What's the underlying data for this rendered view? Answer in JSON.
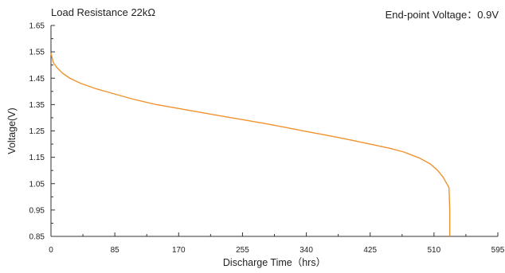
{
  "header": {
    "left": "Load Resistance 22kΩ",
    "right": "End-point Voltage：0.9V"
  },
  "chart_data": {
    "type": "line",
    "xlabel": "Discharge Time（hrs）",
    "ylabel": "Voltage(V)",
    "xlim": [
      0,
      595
    ],
    "ylim": [
      0.85,
      1.65
    ],
    "xticks": [
      "0",
      "85",
      "170",
      "255",
      "340",
      "425",
      "510",
      "595"
    ],
    "yticks": [
      "0.85",
      "0.95",
      "1.05",
      "1.15",
      "1.25",
      "1.35",
      "1.45",
      "1.55",
      "1.65"
    ],
    "grid": false,
    "series": [
      {
        "color": "#f0922e",
        "x": [
          0,
          3,
          8,
          15,
          25,
          40,
          60,
          85,
          110,
          140,
          170,
          200,
          230,
          255,
          285,
          315,
          340,
          370,
          400,
          425,
          450,
          470,
          490,
          505,
          515,
          522,
          526,
          528,
          530,
          531,
          531
        ],
        "y": [
          1.545,
          1.51,
          1.49,
          1.47,
          1.45,
          1.43,
          1.41,
          1.39,
          1.37,
          1.35,
          1.335,
          1.32,
          1.305,
          1.293,
          1.278,
          1.262,
          1.248,
          1.232,
          1.215,
          1.2,
          1.185,
          1.17,
          1.148,
          1.125,
          1.1,
          1.075,
          1.055,
          1.045,
          1.035,
          0.95,
          0.85
        ]
      }
    ]
  }
}
